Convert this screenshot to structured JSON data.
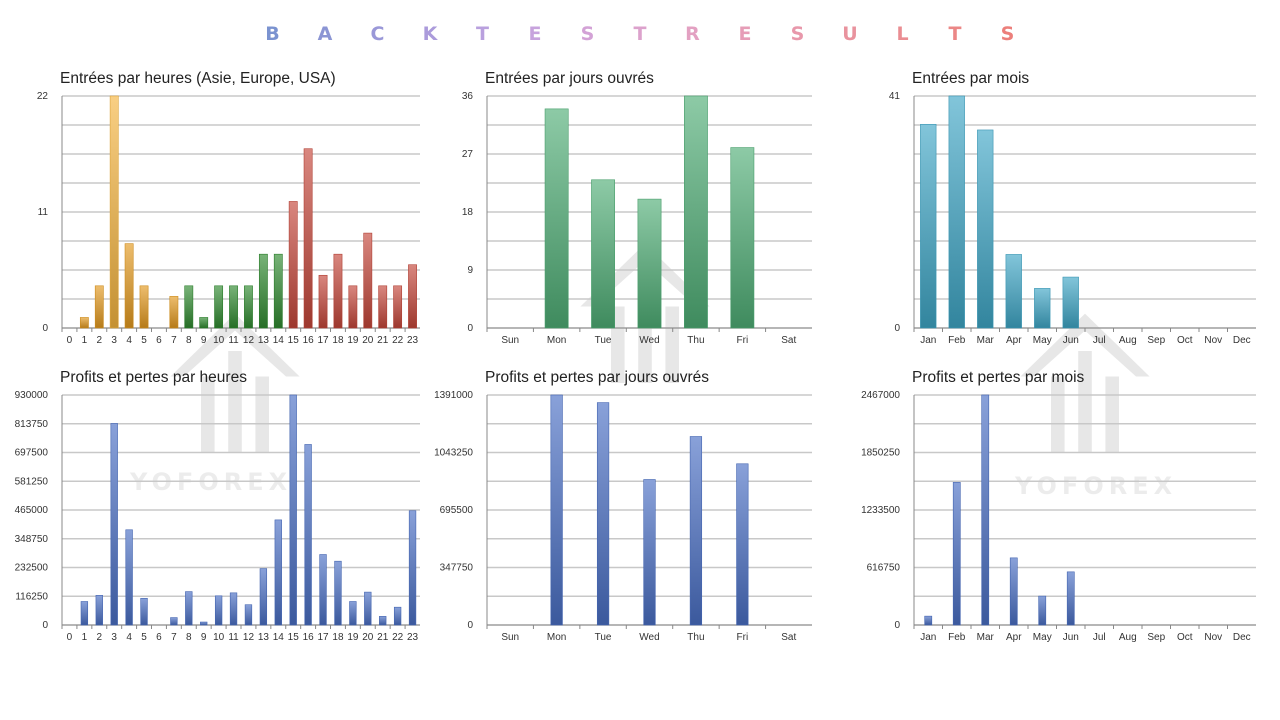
{
  "header": {
    "title": "BACKTESTRESULTS",
    "letters": [
      "B",
      "A",
      "C",
      "K",
      "T",
      "E",
      "S",
      "T",
      "R",
      "E",
      "S",
      "U",
      "L",
      "T",
      "S"
    ],
    "letter_colors": [
      "#7b93d0",
      "#8b95d4",
      "#9a98d8",
      "#ab9bdb",
      "#b9a0de",
      "#c7a3dd",
      "#d3a2d6",
      "#dca2cc",
      "#e3a1c2",
      "#e69db7",
      "#e898ab",
      "#e9939e",
      "#ea8d92",
      "#eb8786",
      "#ec7f7b"
    ]
  },
  "watermarks": {
    "text": "YOFOREX",
    "icon": "yoforex-logo-icon"
  },
  "chart_data": [
    {
      "type": "bar",
      "title": "Entrées par heures (Asie, Europe, USA)",
      "categories": [
        "0",
        "1",
        "2",
        "3",
        "4",
        "5",
        "6",
        "7",
        "8",
        "9",
        "10",
        "11",
        "12",
        "13",
        "14",
        "15",
        "16",
        "17",
        "18",
        "19",
        "20",
        "21",
        "22",
        "23"
      ],
      "values": [
        0,
        1,
        4,
        22,
        8,
        4,
        0,
        3,
        4,
        1,
        4,
        4,
        4,
        7,
        7,
        12,
        17,
        5,
        7,
        4,
        9,
        4,
        4,
        6
      ],
      "ylim": [
        0,
        22
      ],
      "yticks": [
        "22",
        "11",
        "0"
      ],
      "bar_colors": [
        "#e39a1f",
        "#e39a1f",
        "#e39a1f",
        "#f5b540",
        "#e39a1f",
        "#e39a1f",
        "#e39a1f",
        "#e39a1f",
        "#2f8a2f",
        "#2f8a2f",
        "#2f8a2f",
        "#2f8a2f",
        "#2f8a2f",
        "#2f8a2f",
        "#2f8a2f",
        "#c4463a",
        "#c4463a",
        "#c4463a",
        "#c4463a",
        "#c4463a",
        "#c4463a",
        "#c4463a",
        "#c4463a",
        "#c4463a"
      ],
      "grid": true
    },
    {
      "type": "bar",
      "title": "Entrées par jours ouvrés",
      "categories": [
        "Sun",
        "Mon",
        "Tue",
        "Wed",
        "Thu",
        "Fri",
        "Sat"
      ],
      "values": [
        0,
        34,
        23,
        20,
        36,
        28,
        0
      ],
      "ylim": [
        0,
        36
      ],
      "yticks": [
        "36",
        "27",
        "18",
        "9",
        "0"
      ],
      "bar_color": "#4fae76",
      "grid": true
    },
    {
      "type": "bar",
      "title": "Entrées par mois",
      "categories": [
        "Jan",
        "Feb",
        "Mar",
        "Apr",
        "May",
        "Jun",
        "Jul",
        "Aug",
        "Sep",
        "Oct",
        "Nov",
        "Dec"
      ],
      "values": [
        36,
        41,
        35,
        13,
        7,
        9,
        0,
        0,
        0,
        0,
        0,
        0
      ],
      "ylim": [
        0,
        41
      ],
      "yticks": [
        "41",
        "0"
      ],
      "bar_color": "#3fa6c6",
      "grid": true
    },
    {
      "type": "bar",
      "title": "Profits et pertes par heures",
      "categories": [
        "0",
        "1",
        "2",
        "3",
        "4",
        "5",
        "6",
        "7",
        "8",
        "9",
        "10",
        "11",
        "12",
        "13",
        "14",
        "15",
        "16",
        "17",
        "18",
        "19",
        "20",
        "21",
        "22",
        "23"
      ],
      "values": [
        0,
        95000,
        120000,
        815000,
        385000,
        108000,
        0,
        30000,
        135000,
        12000,
        118000,
        130000,
        82000,
        228000,
        425000,
        930000,
        730000,
        285000,
        258000,
        95000,
        133000,
        35000,
        72000,
        462000
      ],
      "ylim": [
        0,
        930000
      ],
      "yticks": [
        "930000",
        "813750",
        "697500",
        "581250",
        "465000",
        "348750",
        "232500",
        "116250",
        "0"
      ],
      "bar_color": "#4a6fc4",
      "grid": true
    },
    {
      "type": "bar",
      "title": "Profits et pertes par jours ouvrés",
      "categories": [
        "Sun",
        "Mon",
        "Tue",
        "Wed",
        "Thu",
        "Fri",
        "Sat"
      ],
      "values": [
        0,
        1391000,
        1345000,
        880000,
        1140000,
        975000,
        0
      ],
      "ylim": [
        0,
        1391000
      ],
      "yticks": [
        "1391000",
        "1043250",
        "695500",
        "347750",
        "0"
      ],
      "bar_color": "#4a6fc4",
      "grid": true
    },
    {
      "type": "bar",
      "title": "Profits et pertes par mois",
      "categories": [
        "Jan",
        "Feb",
        "Mar",
        "Apr",
        "May",
        "Jun",
        "Jul",
        "Aug",
        "Sep",
        "Oct",
        "Nov",
        "Dec"
      ],
      "values": [
        95000,
        1530000,
        2467000,
        720000,
        310000,
        570000,
        0,
        0,
        0,
        0,
        0,
        0
      ],
      "ylim": [
        0,
        2467000
      ],
      "yticks": [
        "2467000",
        "1850250",
        "1233500",
        "616750",
        "0"
      ],
      "bar_color": "#4a6fc4",
      "grid": true
    }
  ]
}
